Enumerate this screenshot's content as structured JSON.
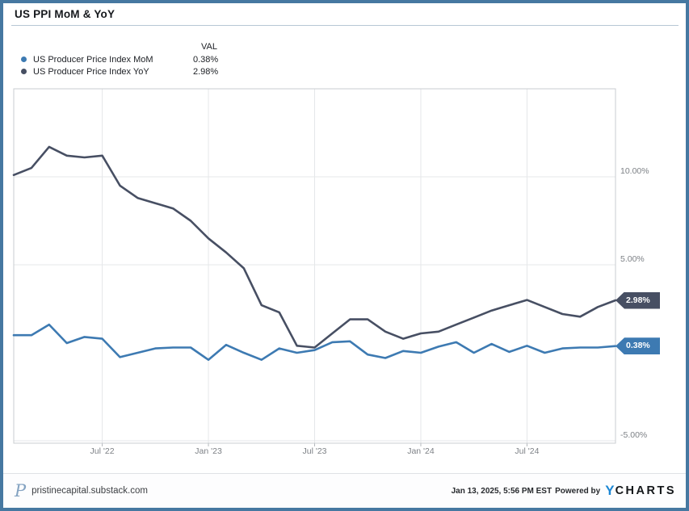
{
  "header": {
    "title": "US PPI MoM & YoY"
  },
  "legend": {
    "val_header": "VAL",
    "items": [
      {
        "label": "US Producer Price Index MoM",
        "value": "0.38%",
        "color": "#3d7ab2"
      },
      {
        "label": "US Producer Price Index YoY",
        "value": "2.98%",
        "color": "#474f63"
      }
    ]
  },
  "chart_data": {
    "type": "line",
    "title": "US PPI MoM & YoY",
    "x": [
      "Feb '22",
      "Mar '22",
      "Apr '22",
      "May '22",
      "Jun '22",
      "Jul '22",
      "Aug '22",
      "Sep '22",
      "Oct '22",
      "Nov '22",
      "Dec '22",
      "Jan '23",
      "Feb '23",
      "Mar '23",
      "Apr '23",
      "May '23",
      "Jun '23",
      "Jul '23",
      "Aug '23",
      "Sep '23",
      "Oct '23",
      "Nov '23",
      "Dec '23",
      "Jan '24",
      "Feb '24",
      "Mar '24",
      "Apr '24",
      "May '24",
      "Jun '24",
      "Jul '24",
      "Aug '24",
      "Sep '24",
      "Oct '24",
      "Nov '24",
      "Dec '24"
    ],
    "series": [
      {
        "name": "US Producer Price Index MoM",
        "color": "#3d7ab2",
        "end_label": "0.38%",
        "values": [
          1.0,
          1.0,
          1.6,
          0.55,
          0.9,
          0.8,
          -0.25,
          0.0,
          0.25,
          0.3,
          0.3,
          -0.4,
          0.45,
          0.0,
          -0.4,
          0.25,
          0.0,
          0.15,
          0.6,
          0.65,
          -0.1,
          -0.3,
          0.1,
          0.0,
          0.35,
          0.6,
          0.0,
          0.5,
          0.05,
          0.4,
          0.0,
          0.25,
          0.3,
          0.3,
          0.38
        ]
      },
      {
        "name": "US Producer Price Index YoY",
        "color": "#474f63",
        "end_label": "2.98%",
        "values": [
          10.1,
          10.5,
          11.7,
          11.2,
          11.1,
          11.2,
          9.5,
          8.8,
          8.5,
          8.2,
          7.5,
          6.5,
          5.7,
          4.8,
          2.7,
          2.3,
          0.4,
          0.3,
          1.1,
          1.9,
          1.9,
          1.2,
          0.8,
          1.1,
          1.2,
          1.6,
          2.0,
          2.4,
          2.7,
          3.0,
          2.6,
          2.2,
          2.05,
          2.6,
          2.98
        ]
      }
    ],
    "x_tick_labels": [
      "Jul '22",
      "Jan '23",
      "Jul '23",
      "Jan '24",
      "Jul '24"
    ],
    "x_tick_indices": [
      5,
      11,
      17,
      23,
      29
    ],
    "y_tick_labels": [
      "10.00%",
      "5.00%",
      "-5.00%"
    ],
    "y_tick_values": [
      10,
      5,
      -5
    ],
    "ylim": [
      -5.6,
      15.0
    ],
    "grid": true,
    "legend_position": "top-left"
  },
  "footer": {
    "logo_glyph": "P",
    "site": "pristinecapital.substack.com",
    "timestamp": "Jan 13, 2025, 5:56 PM EST",
    "powered_by": "Powered by",
    "brand_y": "Y",
    "brand_rest": "CHARTS"
  },
  "colors": {
    "frame_border": "#4678a1",
    "plot_border": "#c9ccd0",
    "gridline": "#e5e7e9",
    "axis_text": "#7d8186",
    "mom_line": "#3d7ab2",
    "yoy_line": "#474f63"
  }
}
